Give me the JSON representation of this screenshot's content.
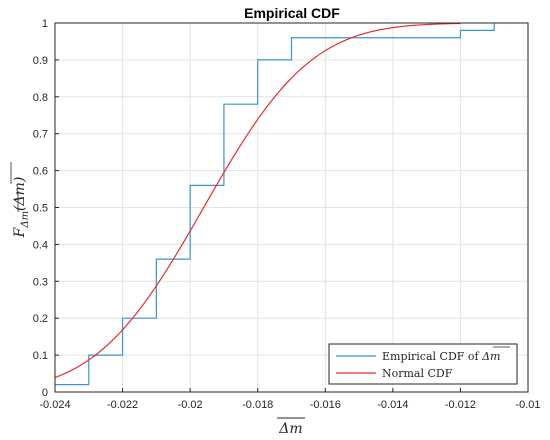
{
  "chart_data": {
    "type": "line",
    "title": "Empirical CDF",
    "xlabel": "Δm",
    "ylabel": "F(Δm)",
    "ylabel_main": "F",
    "ylabel_sub": "Δm",
    "ylabel_arg": "Δm",
    "xlim": [
      -0.024,
      -0.01
    ],
    "ylim": [
      0,
      1
    ],
    "grid": true,
    "legend_position": "bottom-right",
    "x_ticks": [
      "-0.024",
      "-0.022",
      "-0.02",
      "-0.018",
      "-0.016",
      "-0.014",
      "-0.012",
      "-0.01"
    ],
    "x_tick_values": [
      -0.024,
      -0.022,
      -0.02,
      -0.018,
      -0.016,
      -0.014,
      -0.012,
      -0.01
    ],
    "y_ticks": [
      "0",
      "0.1",
      "0.2",
      "0.3",
      "0.4",
      "0.5",
      "0.6",
      "0.7",
      "0.8",
      "0.9",
      "1"
    ],
    "y_tick_values": [
      0,
      0.1,
      0.2,
      0.3,
      0.4,
      0.5,
      0.6,
      0.7,
      0.8,
      0.9,
      1
    ],
    "series": [
      {
        "name": "Empirical CDF of Δm",
        "legend_prefix": "Empirical CDF of ",
        "legend_symbol": "Δm",
        "style": "stairs",
        "color": "#3c94cc",
        "x": [
          -0.024,
          -0.023,
          -0.022,
          -0.021,
          -0.02,
          -0.019,
          -0.018,
          -0.017,
          -0.012,
          -0.011
        ],
        "y": [
          0.02,
          0.1,
          0.2,
          0.36,
          0.56,
          0.78,
          0.9,
          0.96,
          0.98,
          1.0
        ]
      },
      {
        "name": "Normal CDF",
        "style": "normal-cdf",
        "color": "#e03030",
        "mu": -0.0196,
        "sigma": 0.0025,
        "x_range": [
          -0.024,
          -0.012
        ]
      }
    ]
  }
}
